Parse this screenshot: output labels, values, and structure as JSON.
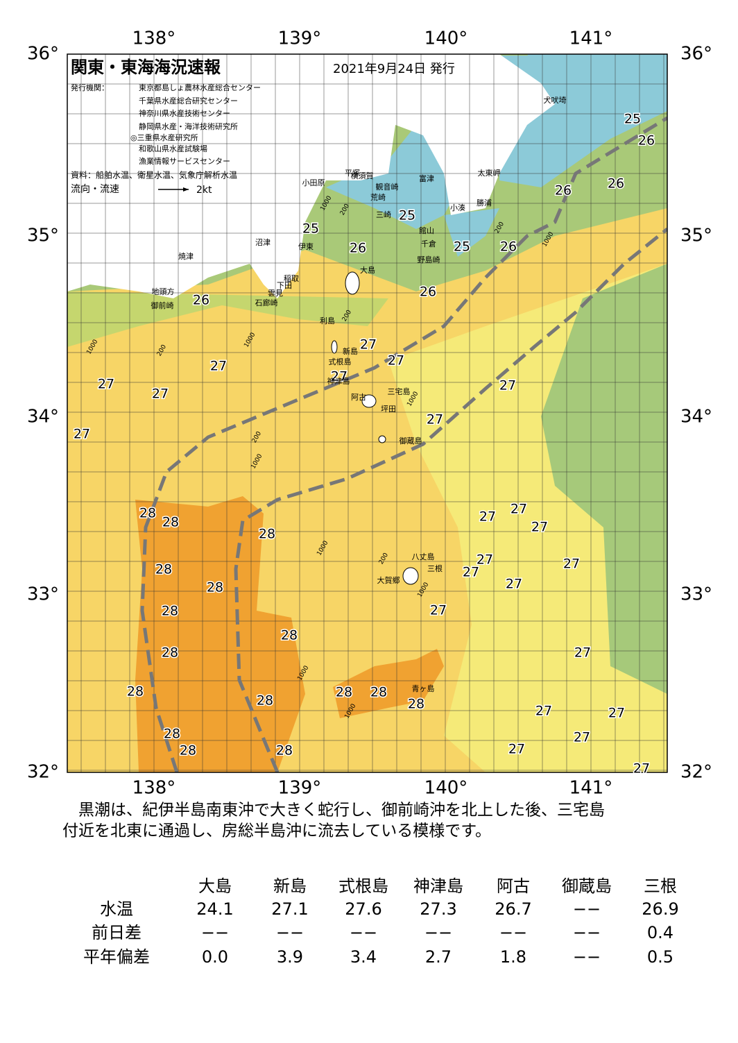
{
  "header": {
    "title": "関東・東海海況速報",
    "date": "2021年9月24日 発行",
    "publisher_label": "発行機関：",
    "publishers": [
      "東京都島しょ農林水産総合センター",
      "千葉県水産総合研究センター",
      "神奈川県水産技術センター",
      "静岡県水産・海洋技術研究所",
      "◎三重県水産研究所",
      "和歌山県水産試験場",
      "漁業情報サービスセンター"
    ],
    "source": "資料：船舶水温、衛星水温、気象庁解析水温",
    "legend_label": "流向・流速",
    "legend_speed": "2kt"
  },
  "axes": {
    "lon_top": [
      "138°",
      "139°",
      "140°",
      "141°"
    ],
    "lon_bottom": [
      "138°",
      "139°",
      "140°",
      "141°"
    ],
    "lat_left": [
      "36°",
      "35°",
      "34°",
      "33°",
      "32°"
    ],
    "lat_right": [
      "36°",
      "35°",
      "34°",
      "33°",
      "32°"
    ]
  },
  "map": {
    "isotherm_labels": [
      "25",
      "25",
      "25",
      "25",
      "26",
      "26",
      "26",
      "26",
      "26",
      "26",
      "26",
      "27",
      "27",
      "27",
      "27",
      "27",
      "27",
      "27",
      "27",
      "27",
      "27",
      "27",
      "27",
      "27",
      "27",
      "27",
      "27",
      "27",
      "27",
      "27",
      "27",
      "27",
      "27",
      "27",
      "28",
      "28",
      "28",
      "28",
      "28",
      "28",
      "28",
      "28",
      "28",
      "28",
      "28",
      "28",
      "28",
      "28",
      "28",
      "28"
    ],
    "place_names": [
      "犬吠埼",
      "太東岬",
      "勝浦",
      "小湊",
      "館山",
      "千倉",
      "野島崎",
      "富津",
      "横須賀",
      "観音崎",
      "平塚",
      "荒崎",
      "三崎",
      "小田原",
      "沼津",
      "伊東",
      "稲取",
      "下田",
      "雲見",
      "石廊崎",
      "大島",
      "利島",
      "新島",
      "式根島",
      "神津島",
      "阿古",
      "三宅島",
      "坪田",
      "御蔵島",
      "八丈島",
      "三根",
      "大賀郷",
      "青ヶ島",
      "焼津",
      "地頭方",
      "御前崎"
    ],
    "depth_labels": [
      "1000",
      "200",
      "1000",
      "200",
      "1000",
      "200",
      "1000",
      "200",
      "1000",
      "1000",
      "1000",
      "200",
      "1000",
      "1000",
      "200",
      "1000"
    ]
  },
  "description": [
    "　黒潮は、紀伊半島南東沖で大きく蛇行し、御前崎沖を北上した後、三宅島",
    "付近を北東に通過し、房総半島沖に流去している模様です。"
  ],
  "table": {
    "columns": [
      "大島",
      "新島",
      "式根島",
      "神津島",
      "阿古",
      "御蔵島",
      "三根"
    ],
    "rows": [
      {
        "label": "水温",
        "cells": [
          "24.1",
          "27.1",
          "27.6",
          "27.3",
          "26.7",
          "−−",
          "26.9"
        ]
      },
      {
        "label": "前日差",
        "cells": [
          "−−",
          "−−",
          "−−",
          "−−",
          "−−",
          "−−",
          "0.4"
        ]
      },
      {
        "label": "平年偏差",
        "cells": [
          "0.0",
          "3.9",
          "3.4",
          "2.7",
          "1.8",
          "−−",
          "0.5"
        ]
      }
    ]
  }
}
